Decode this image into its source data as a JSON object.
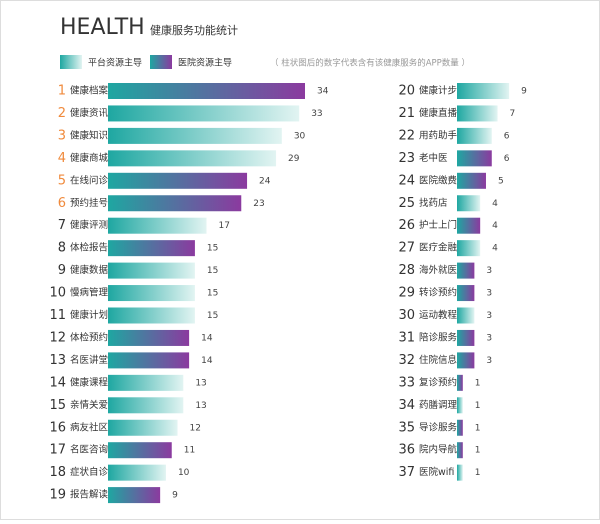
{
  "chart_data": {
    "type": "bar",
    "title": "HEALTH",
    "subtitle": "健康服务功能统计",
    "note": "（ 柱状图后的数字代表含有该健康服务的APP数量 ）",
    "ranks": [
      1,
      2,
      3,
      4,
      5,
      6,
      7,
      8,
      9,
      10,
      11,
      12,
      13,
      14,
      15,
      16,
      17,
      18,
      19,
      20,
      21,
      22,
      23,
      24,
      25,
      26,
      27,
      28,
      29,
      30,
      31,
      32,
      33,
      34,
      35,
      36,
      37
    ],
    "highlight_top": 6,
    "highlight_color": "#f08a3c",
    "categories": [
      "健康档案",
      "健康资讯",
      "健康知识",
      "健康商城",
      "在线问诊",
      "预约挂号",
      "健康评测",
      "体检报告",
      "健康数据",
      "慢病管理",
      "健康计划",
      "体检预约",
      "名医讲堂",
      "健康课程",
      "亲情关爱",
      "病友社区",
      "名医咨询",
      "症状自诊",
      "报告解读",
      "健康计步",
      "健康直播",
      "用药助手",
      "老中医",
      "医院缴费",
      "找药店",
      "护士上门",
      "医疗金融",
      "海外就医",
      "转诊预约",
      "运动教程",
      "陪诊服务",
      "住院信息",
      "复诊预约",
      "药膳调理",
      "导诊服务",
      "院内导航",
      "医院wifi"
    ],
    "series": [
      {
        "name": "平台资源主导",
        "color": [
          "#1ea7a1",
          "#e2f4f2"
        ],
        "values": [
          null,
          33,
          30,
          29,
          null,
          null,
          17,
          null,
          15,
          15,
          15,
          null,
          null,
          13,
          13,
          12,
          null,
          10,
          null,
          9,
          7,
          6,
          null,
          null,
          4,
          null,
          4,
          null,
          null,
          3,
          null,
          null,
          null,
          1,
          null,
          null,
          1
        ]
      },
      {
        "name": "医院资源主导",
        "color": [
          "#1ea7a1",
          "#8b3a9f"
        ],
        "values": [
          34,
          null,
          null,
          null,
          24,
          23,
          null,
          15,
          null,
          null,
          null,
          14,
          14,
          null,
          null,
          null,
          11,
          null,
          9,
          null,
          null,
          null,
          6,
          5,
          null,
          4,
          null,
          3,
          3,
          null,
          3,
          3,
          1,
          null,
          1,
          1,
          null
        ]
      }
    ]
  }
}
